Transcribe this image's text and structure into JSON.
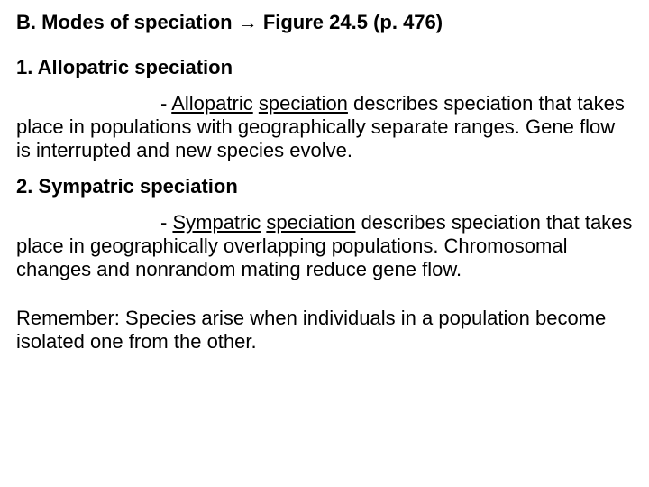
{
  "heading": {
    "prefix": "B.  Modes of speciation ",
    "arrow": "→",
    "suffix": " Figure 24.5 (p. 476)"
  },
  "section1": {
    "title": "1.  Allopatric speciation",
    "lead_dash": "- ",
    "term1": "Allopatric",
    "space1": " ",
    "term2": "speciation",
    "rest1": " describes speciation that",
    "line2": "takes place in populations with geographically separate ranges.  Gene flow is interrupted and new species evolve."
  },
  "section2": {
    "title": "2.  Sympatric speciation",
    "lead_dash": "- ",
    "term1": "Sympatric",
    "space1": " ",
    "term2": "speciation",
    "rest1": " describes speciation",
    "line2": "that takes place in geographically overlapping populations.  Chromosomal changes and nonrandom mating reduce gene flow."
  },
  "remember": "Remember:  Species arise when individuals in a population become isolated one from the other."
}
